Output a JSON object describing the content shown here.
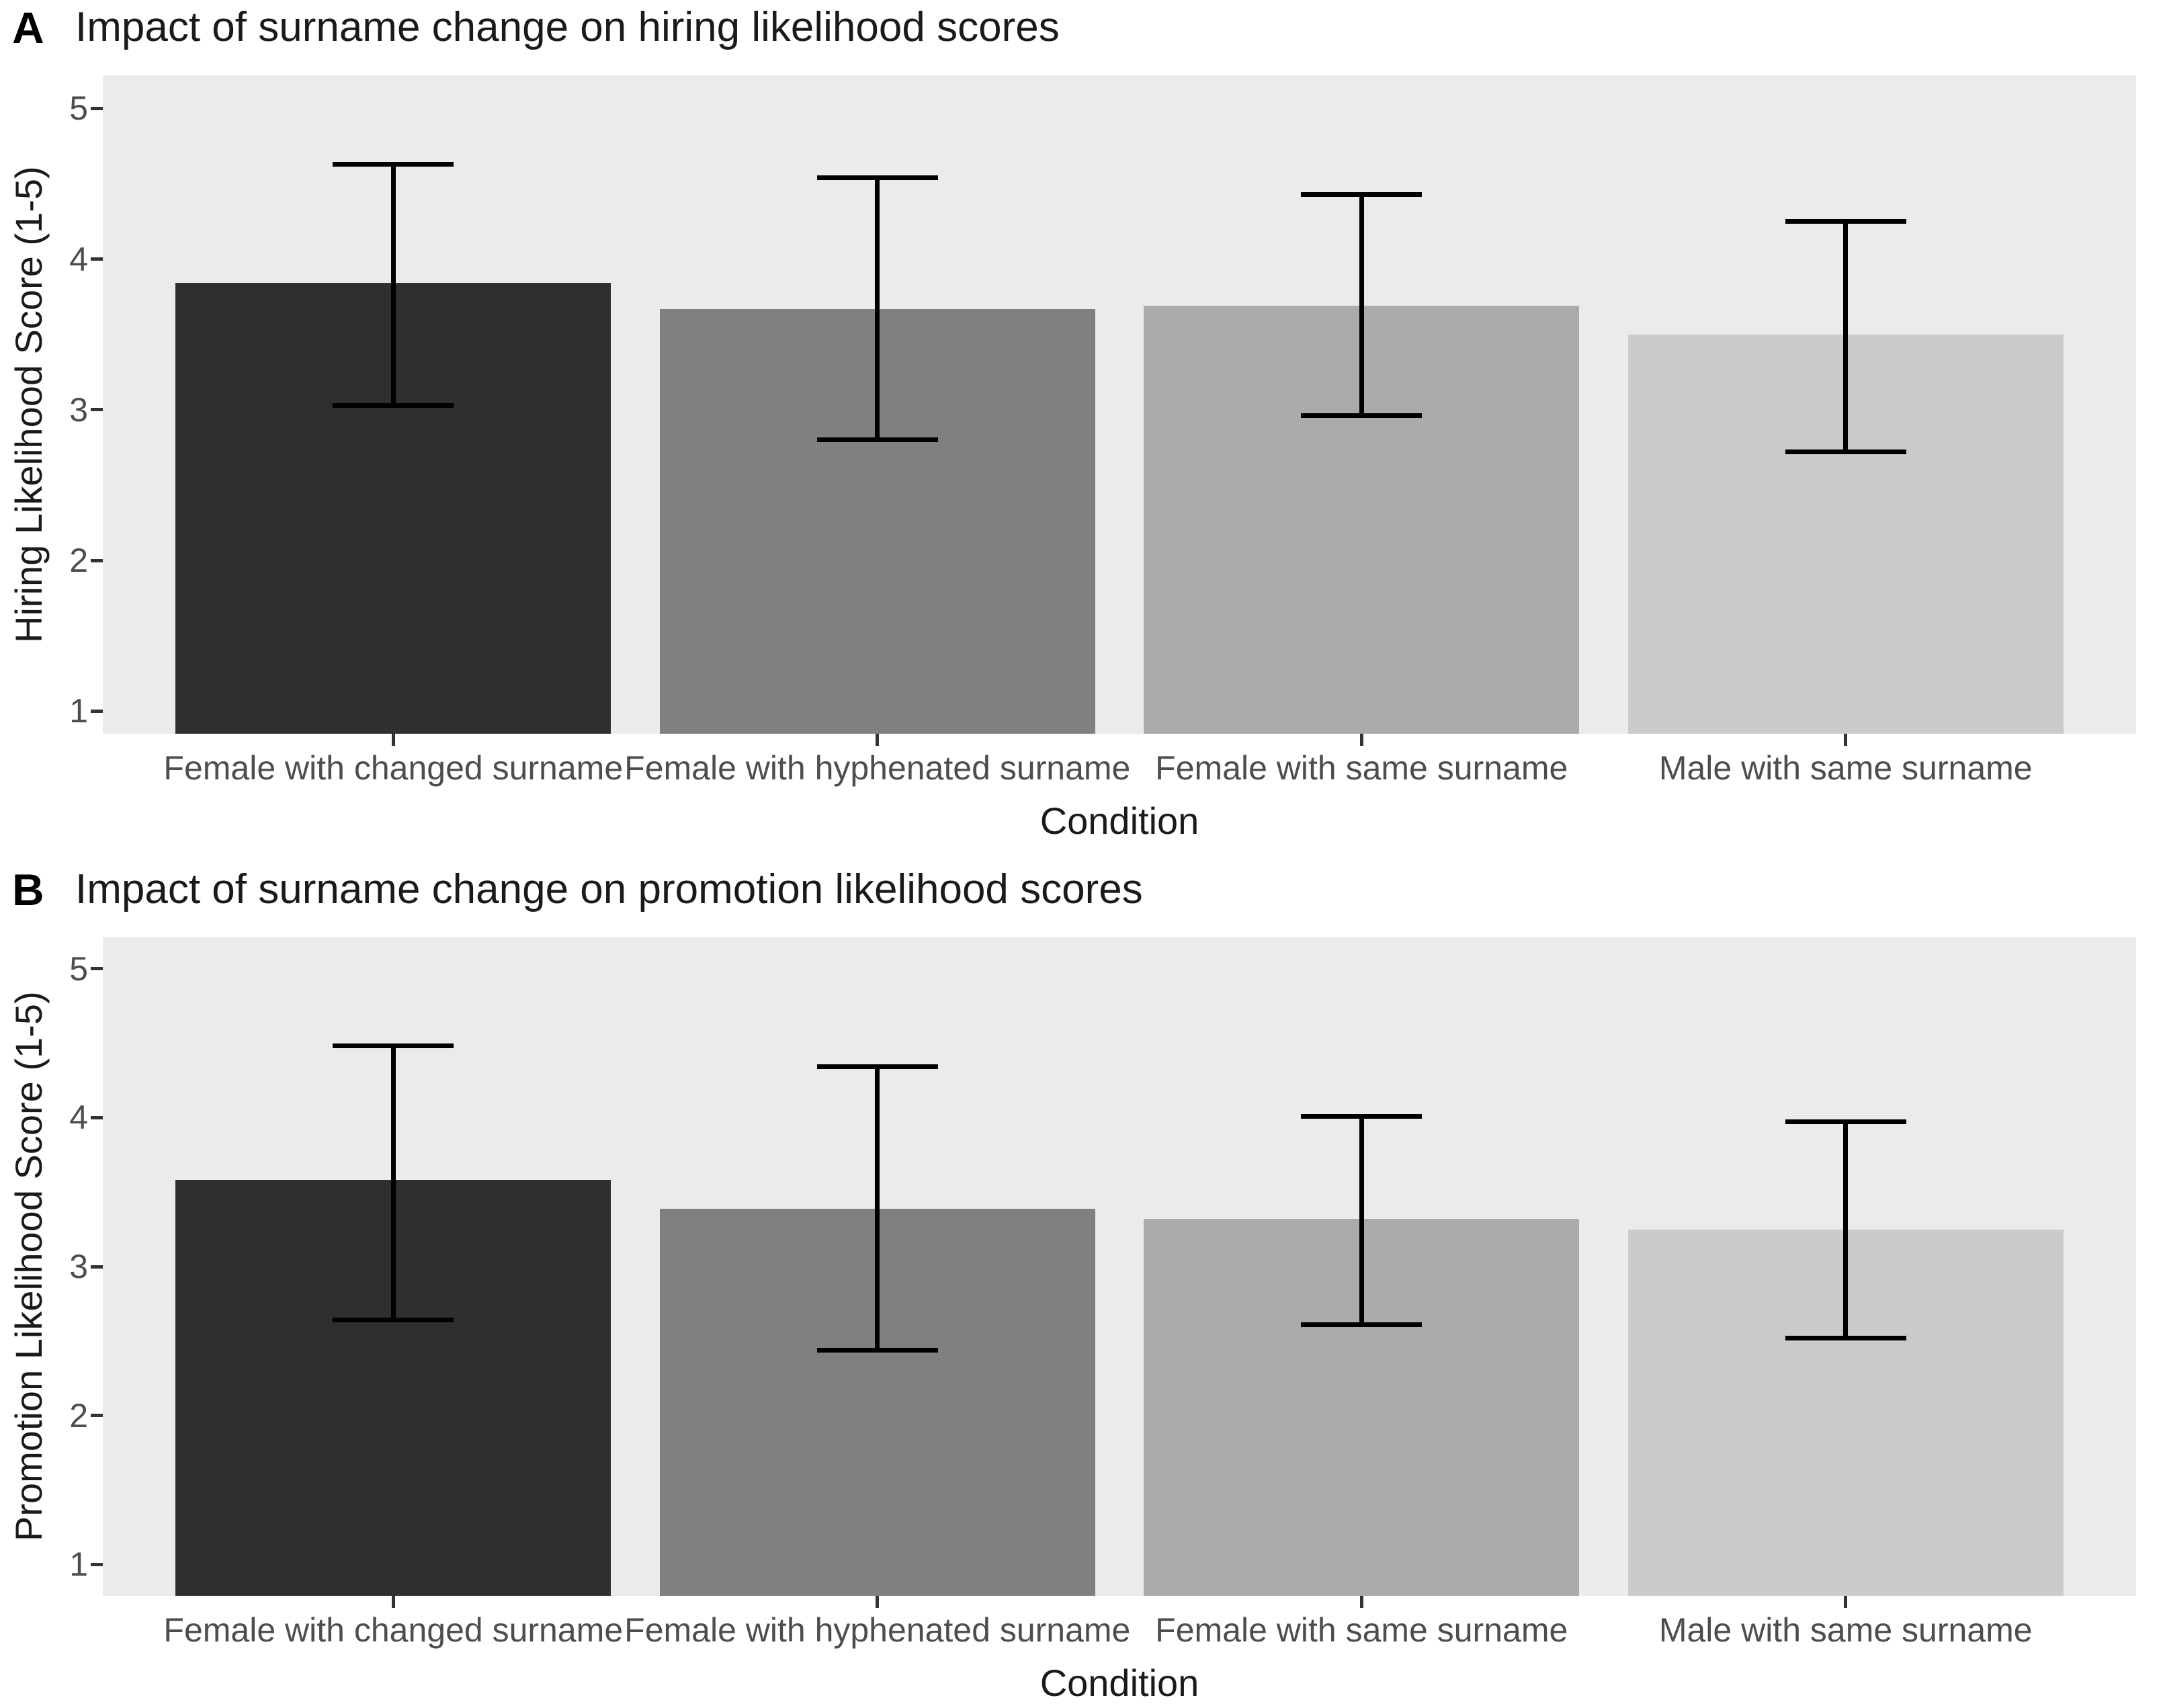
{
  "figure": {
    "background": "#ffffff",
    "panel_background": "#ebebeb",
    "axis_text_color": "#4d4d4d",
    "title_color": "#1a1a1a",
    "error_bar_color": "#000000",
    "bar_colors": [
      "#2f2f2f",
      "#808080",
      "#ababab",
      "#cbcbcb"
    ]
  },
  "chart_data": [
    {
      "type": "bar",
      "tag": "A",
      "title": "Impact of surname change on hiring likelihood scores",
      "xlabel": "Condition",
      "ylabel": "Hiring Likelihood Score (1-5)",
      "categories": [
        "Female with changed surname",
        "Female with hyphenated surname",
        "Female with same surname",
        "Male with same surname"
      ],
      "values": [
        3.84,
        3.67,
        3.69,
        3.5
      ],
      "error_upper": [
        4.63,
        4.54,
        4.43,
        4.25
      ],
      "error_lower": [
        3.03,
        2.8,
        2.96,
        2.72
      ],
      "yticks": [
        1,
        2,
        3,
        4,
        5
      ],
      "ylim": [
        0.85,
        5.22
      ],
      "grid": false,
      "legend": "none"
    },
    {
      "type": "bar",
      "tag": "B",
      "title": "Impact of surname change on promotion likelihood scores",
      "xlabel": "Condition",
      "ylabel": "Promotion Likelihood Score (1-5)",
      "categories": [
        "Female with changed surname",
        "Female with hyphenated surname",
        "Female with same surname",
        "Male with same surname"
      ],
      "values": [
        3.58,
        3.39,
        3.32,
        3.25
      ],
      "error_upper": [
        4.48,
        4.34,
        4.01,
        3.97
      ],
      "error_lower": [
        2.64,
        2.44,
        2.61,
        2.52
      ],
      "yticks": [
        1,
        2,
        3,
        4,
        5
      ],
      "ylim": [
        0.79,
        5.21
      ],
      "grid": false,
      "legend": "none"
    }
  ]
}
